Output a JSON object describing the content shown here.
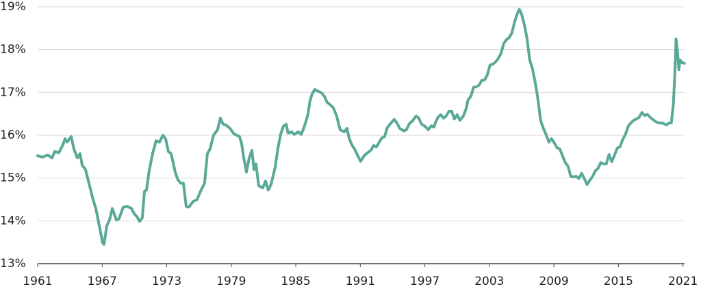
{
  "chart_data": {
    "type": "line",
    "x": [
      1961.0,
      1961.45,
      1961.95,
      1962.34,
      1962.59,
      1962.97,
      1963.35,
      1963.55,
      1963.74,
      1964.12,
      1964.37,
      1964.69,
      1964.94,
      1965.14,
      1965.45,
      1965.77,
      1966.15,
      1966.41,
      1966.79,
      1967.04,
      1967.17,
      1967.43,
      1967.68,
      1967.94,
      1968.32,
      1968.57,
      1968.95,
      1969.33,
      1969.72,
      1969.97,
      1970.23,
      1970.48,
      1970.73,
      1970.93,
      1971.12,
      1971.37,
      1971.69,
      1972.01,
      1972.33,
      1972.64,
      1972.9,
      1973.15,
      1973.41,
      1973.79,
      1974.04,
      1974.3,
      1974.55,
      1974.81,
      1975.06,
      1975.44,
      1975.82,
      1976.2,
      1976.52,
      1976.78,
      1977.03,
      1977.35,
      1977.73,
      1977.99,
      1978.24,
      1978.5,
      1978.88,
      1979.26,
      1979.77,
      1979.96,
      1980.15,
      1980.41,
      1980.66,
      1980.92,
      1981.11,
      1981.3,
      1981.55,
      1981.93,
      1982.19,
      1982.44,
      1982.7,
      1983.08,
      1983.33,
      1983.59,
      1983.84,
      1984.1,
      1984.29,
      1984.61,
      1984.86,
      1985.24,
      1985.5,
      1985.69,
      1985.94,
      1986.13,
      1986.32,
      1986.51,
      1986.77,
      1986.96,
      1987.15,
      1987.4,
      1987.66,
      1987.91,
      1988.17,
      1988.49,
      1988.8,
      1989.12,
      1989.5,
      1989.76,
      1989.95,
      1990.2,
      1990.46,
      1990.71,
      1991.03,
      1991.35,
      1991.67,
      1991.99,
      1992.24,
      1992.49,
      1992.69,
      1993.0,
      1993.26,
      1993.51,
      1993.77,
      1994.15,
      1994.4,
      1994.66,
      1995.04,
      1995.29,
      1995.55,
      1995.87,
      1996.19,
      1996.44,
      1996.69,
      1996.95,
      1997.33,
      1997.59,
      1997.84,
      1998.03,
      1998.22,
      1998.48,
      1998.73,
      1998.99,
      1999.24,
      1999.49,
      1999.75,
      2000.0,
      2000.26,
      2000.58,
      2000.83,
      2001.02,
      2001.28,
      2001.53,
      2001.78,
      2002.04,
      2002.29,
      2002.55,
      2002.8,
      2003.06,
      2003.31,
      2003.57,
      2003.82,
      2004.08,
      2004.33,
      2004.58,
      2004.84,
      2005.09,
      2005.35,
      2005.6,
      2005.79,
      2005.98,
      2006.24,
      2006.49,
      2006.75,
      2007.0,
      2007.26,
      2007.51,
      2007.77,
      2008.02,
      2008.27,
      2008.53,
      2008.78,
      2009.04,
      2009.29,
      2009.55,
      2009.8,
      2010.06,
      2010.31,
      2010.57,
      2010.82,
      2011.08,
      2011.33,
      2011.58,
      2011.84,
      2012.09,
      2012.35,
      2012.6,
      2012.86,
      2013.11,
      2013.36,
      2013.62,
      2013.87,
      2014.13,
      2014.38,
      2014.64,
      2014.89,
      2015.14,
      2015.4,
      2015.65,
      2015.91,
      2016.16,
      2016.42,
      2016.67,
      2016.93,
      2017.18,
      2017.44,
      2017.69,
      2017.94,
      2018.2,
      2018.45,
      2018.71,
      2018.96,
      2019.22,
      2019.47,
      2019.73,
      2019.92,
      2020.11,
      2020.24,
      2020.36,
      2020.49,
      2020.62,
      2020.74,
      2020.94,
      2021.13
    ],
    "values": [
      15.52,
      15.49,
      15.54,
      15.47,
      15.62,
      15.59,
      15.78,
      15.92,
      15.84,
      15.97,
      15.68,
      15.47,
      15.57,
      15.3,
      15.2,
      14.88,
      14.5,
      14.29,
      13.81,
      13.49,
      13.45,
      13.89,
      14.02,
      14.29,
      14.02,
      14.05,
      14.32,
      14.34,
      14.29,
      14.17,
      14.1,
      13.99,
      14.07,
      14.69,
      14.72,
      15.17,
      15.57,
      15.87,
      15.84,
      16.0,
      15.92,
      15.62,
      15.57,
      15.14,
      14.96,
      14.88,
      14.88,
      14.34,
      14.32,
      14.45,
      14.5,
      14.72,
      14.88,
      15.57,
      15.68,
      16.0,
      16.13,
      16.4,
      16.26,
      16.24,
      16.16,
      16.03,
      15.97,
      15.81,
      15.49,
      15.14,
      15.46,
      15.65,
      15.2,
      15.33,
      14.82,
      14.77,
      14.93,
      14.72,
      14.85,
      15.25,
      15.68,
      16.02,
      16.21,
      16.26,
      16.05,
      16.08,
      16.02,
      16.08,
      16.02,
      16.13,
      16.32,
      16.49,
      16.8,
      16.96,
      17.07,
      17.04,
      17.02,
      16.99,
      16.91,
      16.77,
      16.72,
      16.64,
      16.45,
      16.13,
      16.08,
      16.16,
      15.94,
      15.78,
      15.68,
      15.55,
      15.39,
      15.52,
      15.59,
      15.65,
      15.76,
      15.73,
      15.81,
      15.94,
      15.97,
      16.18,
      16.26,
      16.37,
      16.29,
      16.16,
      16.1,
      16.13,
      16.27,
      16.34,
      16.45,
      16.4,
      16.26,
      16.22,
      16.13,
      16.22,
      16.19,
      16.32,
      16.42,
      16.48,
      16.4,
      16.45,
      16.56,
      16.56,
      16.38,
      16.48,
      16.35,
      16.45,
      16.61,
      16.83,
      16.91,
      17.12,
      17.13,
      17.17,
      17.28,
      17.29,
      17.4,
      17.64,
      17.66,
      17.71,
      17.79,
      17.91,
      18.14,
      18.23,
      18.28,
      18.39,
      18.65,
      18.84,
      18.94,
      18.84,
      18.6,
      18.28,
      17.76,
      17.56,
      17.24,
      16.85,
      16.34,
      16.16,
      16.02,
      15.84,
      15.92,
      15.82,
      15.71,
      15.68,
      15.52,
      15.36,
      15.28,
      15.04,
      15.03,
      15.04,
      14.99,
      15.11,
      14.98,
      14.85,
      14.95,
      15.04,
      15.17,
      15.23,
      15.36,
      15.33,
      15.33,
      15.55,
      15.38,
      15.54,
      15.7,
      15.73,
      15.9,
      16.02,
      16.21,
      16.29,
      16.35,
      16.38,
      16.42,
      16.53,
      16.46,
      16.49,
      16.42,
      16.37,
      16.32,
      16.29,
      16.29,
      16.27,
      16.24,
      16.29,
      16.29,
      16.73,
      17.4,
      18.25,
      17.96,
      17.53,
      17.76,
      17.69,
      17.68
    ],
    "color": "#5aa897",
    "xlim": [
      1961,
      2021.15
    ],
    "xticks": [
      1961,
      1967,
      1973,
      1979,
      1985,
      1991,
      1997,
      2003,
      2009,
      2015,
      2021
    ],
    "ylim": [
      13,
      19
    ],
    "yticks": [
      {
        "value": 13,
        "label": "13%"
      },
      {
        "value": 14,
        "label": "14%"
      },
      {
        "value": 15,
        "label": "15%"
      },
      {
        "value": 16,
        "label": "16%"
      },
      {
        "value": 17,
        "label": "17%"
      },
      {
        "value": 18,
        "label": "18%"
      },
      {
        "value": 19,
        "label": "19%"
      }
    ],
    "grid": true
  }
}
